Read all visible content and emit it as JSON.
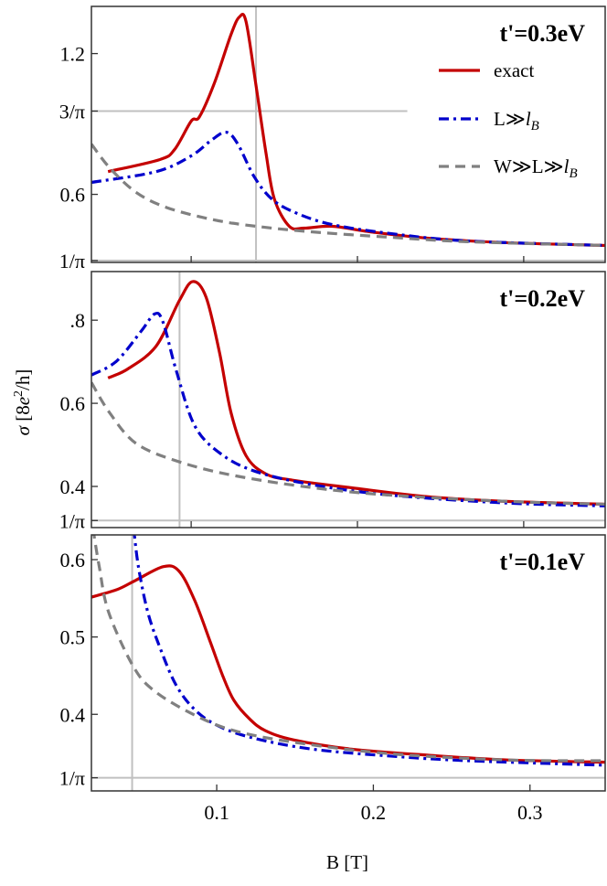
{
  "chart_data": [
    {
      "type": "line",
      "title": "t'=0.3eV",
      "xlim": [
        0.04,
        0.349
      ],
      "ylim": [
        0.31,
        1.401
      ],
      "xticks": [
        {
          "value": 0.1,
          "label": ""
        },
        {
          "value": 0.2,
          "label": ""
        },
        {
          "value": 0.3,
          "label": ""
        }
      ],
      "yticks": [
        {
          "value": 1.2,
          "label": "1.2",
          "color": "#000000"
        },
        {
          "value": 0.955,
          "label": "3/π",
          "color": "#e00000"
        },
        {
          "value": 0.6,
          "label": "0.6",
          "color": "#000000"
        },
        {
          "value": 0.318,
          "label": "1/π",
          "color": "#e00000"
        }
      ],
      "reference_lines": {
        "horizontal": [
          {
            "y": 0.318,
            "x_end": null
          },
          {
            "y": 0.955,
            "x_end": 0.23
          }
        ],
        "vertical": [
          0.139
        ]
      },
      "series": [
        {
          "name": "exact",
          "style": "solid",
          "color": "#c40000",
          "x": [
            0.05,
            0.081,
            0.09,
            0.1,
            0.105,
            0.114,
            0.124,
            0.129,
            0.133,
            0.139,
            0.145,
            0.15,
            0.159,
            0.168,
            0.185,
            0.208,
            0.243,
            0.29,
            0.351
          ],
          "y": [
            0.697,
            0.748,
            0.791,
            0.912,
            0.931,
            1.075,
            1.282,
            1.356,
            1.336,
            1.064,
            0.776,
            0.581,
            0.464,
            0.456,
            0.464,
            0.44,
            0.413,
            0.394,
            0.382
          ]
        },
        {
          "name": "L≫lB",
          "style": "dashdot",
          "color": "#0000cc",
          "x": [
            0.04,
            0.079,
            0.1,
            0.112,
            0.121,
            0.128,
            0.138,
            0.149,
            0.164,
            0.185,
            0.22,
            0.267,
            0.351
          ],
          "y": [
            0.651,
            0.697,
            0.764,
            0.83,
            0.865,
            0.815,
            0.674,
            0.577,
            0.518,
            0.471,
            0.433,
            0.401,
            0.382
          ]
        },
        {
          "name": "W≫L≫lB",
          "style": "dashed",
          "color": "#808080",
          "x": [
            0.04,
            0.051,
            0.067,
            0.086,
            0.114,
            0.139,
            0.173,
            0.22,
            0.267,
            0.351
          ],
          "y": [
            0.814,
            0.713,
            0.608,
            0.542,
            0.491,
            0.464,
            0.44,
            0.417,
            0.398,
            0.382
          ]
        }
      ],
      "legend": {
        "placement": "top-right",
        "items": [
          {
            "prefix": "exact",
            "italic": "",
            "sub": ""
          },
          {
            "prefix": "L≫",
            "italic": "l",
            "sub": "B"
          },
          {
            "prefix": "W≫L≫",
            "italic": "l",
            "sub": "B"
          }
        ]
      }
    },
    {
      "type": "line",
      "title": "t'=0.2eV",
      "xlim": [
        0.04,
        0.349
      ],
      "ylim": [
        0.301,
        0.917
      ],
      "xticks": [
        {
          "value": 0.1,
          "label": ""
        },
        {
          "value": 0.2,
          "label": ""
        },
        {
          "value": 0.3,
          "label": ""
        }
      ],
      "yticks": [
        {
          "value": 0.8,
          "label": ".8",
          "color": "#000000"
        },
        {
          "value": 0.6,
          "label": "0.6",
          "color": "#000000"
        },
        {
          "value": 0.4,
          "label": "0.4",
          "color": "#000000"
        },
        {
          "value": 0.318,
          "label": "1/π",
          "color": "#e00000"
        }
      ],
      "reference_lines": {
        "horizontal": [
          {
            "y": 0.318,
            "x_end": null
          }
        ],
        "vertical": [
          0.093
        ]
      },
      "series": [
        {
          "name": "exact",
          "style": "solid",
          "color": "#c40000",
          "x": [
            0.05,
            0.062,
            0.079,
            0.093,
            0.101,
            0.109,
            0.117,
            0.124,
            0.133,
            0.145,
            0.161,
            0.196,
            0.243,
            0.29,
            0.351
          ],
          "y": [
            0.661,
            0.683,
            0.738,
            0.848,
            0.893,
            0.855,
            0.723,
            0.577,
            0.474,
            0.43,
            0.415,
            0.397,
            0.375,
            0.364,
            0.357
          ]
        },
        {
          "name": "L≫lB",
          "style": "dashdot",
          "color": "#0000cc",
          "x": [
            0.04,
            0.055,
            0.07,
            0.078,
            0.083,
            0.091,
            0.102,
            0.117,
            0.138,
            0.173,
            0.22,
            0.29,
            0.351
          ],
          "y": [
            0.668,
            0.701,
            0.774,
            0.815,
            0.796,
            0.679,
            0.547,
            0.481,
            0.437,
            0.404,
            0.379,
            0.36,
            0.353
          ]
        },
        {
          "name": "W≫L≫lB",
          "style": "dashed",
          "color": "#808080",
          "x": [
            0.04,
            0.051,
            0.067,
            0.093,
            0.126,
            0.173,
            0.22,
            0.29,
            0.351
          ],
          "y": [
            0.65,
            0.577,
            0.503,
            0.459,
            0.426,
            0.397,
            0.379,
            0.364,
            0.357
          ]
        }
      ]
    },
    {
      "type": "line",
      "title": "t'=0.1eV",
      "xlabel": "B [T]",
      "xlim": [
        0.02,
        0.348
      ],
      "ylim": [
        0.301,
        0.632
      ],
      "xticks": [
        {
          "value": 0.1,
          "label": "0.1"
        },
        {
          "value": 0.2,
          "label": "0.2"
        },
        {
          "value": 0.3,
          "label": "0.3"
        }
      ],
      "yticks": [
        {
          "value": 0.6,
          "label": "0.6",
          "color": "#000000"
        },
        {
          "value": 0.5,
          "label": "0.5",
          "color": "#000000"
        },
        {
          "value": 0.4,
          "label": "0.4",
          "color": "#000000"
        },
        {
          "value": 0.318,
          "label": "1/π",
          "color": "#e00000"
        }
      ],
      "reference_lines": {
        "horizontal": [
          {
            "y": 0.318,
            "x_end": null
          }
        ],
        "vertical": [
          0.046
        ]
      },
      "series": [
        {
          "name": "exact",
          "style": "solid",
          "color": "#c40000",
          "x": [
            0.019,
            0.036,
            0.048,
            0.066,
            0.076,
            0.086,
            0.096,
            0.104,
            0.111,
            0.121,
            0.131,
            0.149,
            0.186,
            0.236,
            0.286,
            0.351
          ],
          "y": [
            0.551,
            0.561,
            0.573,
            0.591,
            0.585,
            0.547,
            0.493,
            0.449,
            0.418,
            0.394,
            0.379,
            0.367,
            0.355,
            0.347,
            0.341,
            0.338
          ]
        },
        {
          "name": "L≫lB",
          "style": "dashdot",
          "color": "#0000cc",
          "x": [
            0.047,
            0.05,
            0.056,
            0.064,
            0.074,
            0.086,
            0.101,
            0.124,
            0.161,
            0.211,
            0.261,
            0.351
          ],
          "y": [
            0.64,
            0.591,
            0.532,
            0.485,
            0.438,
            0.406,
            0.385,
            0.369,
            0.355,
            0.346,
            0.34,
            0.334
          ]
        },
        {
          "name": "W≫L≫lB",
          "style": "dashed",
          "color": "#808080",
          "x": [
            0.021,
            0.025,
            0.031,
            0.047,
            0.061,
            0.086,
            0.111,
            0.149,
            0.211,
            0.286,
            0.351
          ],
          "y": [
            0.64,
            0.591,
            0.532,
            0.461,
            0.429,
            0.399,
            0.379,
            0.364,
            0.349,
            0.341,
            0.34
          ]
        }
      ]
    }
  ],
  "ylabel": {
    "sigma": "σ",
    "text": " [8",
    "e": "e",
    "sup": "2",
    "rest": "/h]"
  },
  "colors": {
    "exact": "#c40000",
    "L_lB": "#0000cc",
    "W_L_lB": "#808080",
    "reference": "#c0c0c0",
    "special_tick": "#e00000"
  }
}
